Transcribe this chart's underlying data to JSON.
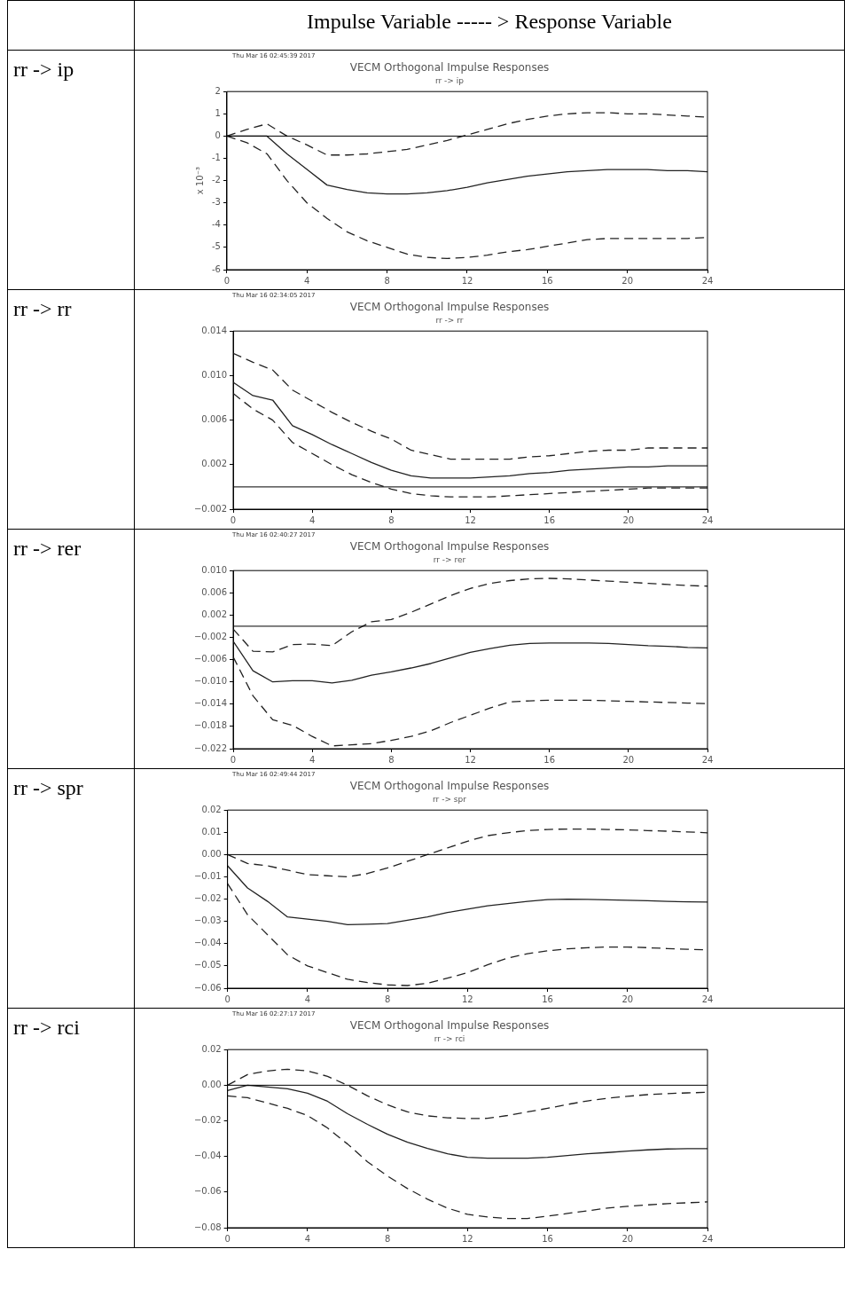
{
  "chart_data": [
    {
      "type": "line",
      "title": "VECM Orthogonal Impulse Responses",
      "subtitle": "rr -> ip",
      "ylabel": "x 10⁻³",
      "annotations": [
        "rr -> ip",
        "Thu Mar 16 02:45:39 2017",
        "Impulse Variable ----- > Response Variable"
      ],
      "x": [
        0,
        1,
        2,
        3,
        4,
        5,
        6,
        7,
        8,
        9,
        10,
        11,
        12,
        13,
        14,
        15,
        16,
        17,
        18,
        19,
        20,
        21,
        22,
        23,
        24
      ],
      "xlim": [
        0,
        24
      ],
      "xticks": [
        0,
        4,
        8,
        12,
        16,
        20,
        24
      ],
      "ylim": [
        -6,
        2
      ],
      "yticks": [
        -6,
        -5,
        -4,
        -3,
        -2,
        -1,
        0,
        1,
        2
      ],
      "grid": false,
      "legend": false,
      "marker": "none",
      "ref_lines": [
        {
          "axis": "y",
          "value": 0,
          "color": "#000000",
          "line_style": "solid"
        }
      ],
      "series": [
        {
          "color": "#222222",
          "line_style": "solid",
          "values": [
            0,
            0,
            0,
            -0.8,
            -1.5,
            -2.2,
            -2.4,
            -2.55,
            -2.6,
            -2.6,
            -2.55,
            -2.45,
            -2.3,
            -2.1,
            -1.95,
            -1.8,
            -1.7,
            -1.6,
            -1.55,
            -1.5,
            -1.5,
            -1.5,
            -1.55,
            -1.55,
            -1.6
          ]
        },
        {
          "color": "#222222",
          "line_style": "dashed",
          "values": [
            0,
            0.3,
            0.55,
            0,
            -0.4,
            -0.85,
            -0.85,
            -0.8,
            -0.7,
            -0.6,
            -0.4,
            -0.2,
            0.05,
            0.3,
            0.55,
            0.75,
            0.9,
            1.0,
            1.05,
            1.05,
            1.0,
            1.0,
            0.95,
            0.9,
            0.85
          ]
        },
        {
          "color": "#222222",
          "line_style": "dashed",
          "values": [
            0,
            -0.3,
            -0.8,
            -2.0,
            -3.0,
            -3.7,
            -4.3,
            -4.7,
            -5.0,
            -5.3,
            -5.45,
            -5.5,
            -5.45,
            -5.35,
            -5.2,
            -5.1,
            -4.95,
            -4.8,
            -4.65,
            -4.6,
            -4.6,
            -4.6,
            -4.6,
            -4.6,
            -4.55
          ]
        }
      ]
    },
    {
      "type": "line",
      "title": "VECM Orthogonal Impulse Responses",
      "subtitle": "rr -> rr",
      "annotations": [
        "rr -> rr",
        "Thu Mar 16 02:34:05 2017"
      ],
      "x": [
        0,
        1,
        2,
        3,
        4,
        5,
        6,
        7,
        8,
        9,
        10,
        11,
        12,
        13,
        14,
        15,
        16,
        17,
        18,
        19,
        20,
        21,
        22,
        23,
        24
      ],
      "xlim": [
        0,
        24
      ],
      "xticks": [
        0,
        4,
        8,
        12,
        16,
        20,
        24
      ],
      "ylim": [
        -0.002,
        0.014
      ],
      "yticks": [
        {
          "value": -0.002,
          "label": "−0.002"
        },
        {
          "value": 0.002,
          "label": "0.002"
        },
        {
          "value": 0.006,
          "label": "0.006"
        },
        {
          "value": 0.01,
          "label": "0.010"
        },
        {
          "value": 0.014,
          "label": "0.014"
        }
      ],
      "grid": false,
      "legend": false,
      "marker": "none",
      "ref_lines": [
        {
          "axis": "y",
          "value": 0,
          "color": "#000000",
          "line_style": "solid"
        }
      ],
      "series": [
        {
          "color": "#222222",
          "line_style": "solid",
          "values": [
            0.0094,
            0.0082,
            0.0078,
            0.0055,
            0.0047,
            0.0038,
            0.003,
            0.0022,
            0.0015,
            0.001,
            0.0008,
            0.0008,
            0.0008,
            0.0009,
            0.001,
            0.0012,
            0.0013,
            0.0015,
            0.0016,
            0.0017,
            0.0018,
            0.0018,
            0.0019,
            0.0019,
            0.0019
          ]
        },
        {
          "color": "#222222",
          "line_style": "dashed",
          "values": [
            0.012,
            0.0112,
            0.0105,
            0.0087,
            0.0077,
            0.0067,
            0.0058,
            0.005,
            0.0043,
            0.0033,
            0.0029,
            0.0025,
            0.0025,
            0.0025,
            0.0025,
            0.0027,
            0.0028,
            0.003,
            0.0032,
            0.0033,
            0.0033,
            0.0035,
            0.0035,
            0.0035,
            0.0035
          ]
        },
        {
          "color": "#222222",
          "line_style": "dashed",
          "values": [
            0.0084,
            0.007,
            0.006,
            0.004,
            0.003,
            0.002,
            0.0011,
            0.0004,
            -0.0002,
            -0.0006,
            -0.0008,
            -0.0009,
            -0.0009,
            -0.0009,
            -0.0008,
            -0.0007,
            -0.0006,
            -0.0005,
            -0.0004,
            -0.0003,
            -0.0002,
            -0.0001,
            -0.0001,
            -0.0001,
            -0.0001
          ]
        }
      ]
    },
    {
      "type": "line",
      "title": "VECM Orthogonal Impulse Responses",
      "subtitle": "rr -> rer",
      "annotations": [
        "rr -> rer",
        "Thu Mar 16 02:40:27 2017"
      ],
      "x": [
        0,
        1,
        2,
        3,
        4,
        5,
        6,
        7,
        8,
        9,
        10,
        11,
        12,
        13,
        14,
        15,
        16,
        17,
        18,
        19,
        20,
        21,
        22,
        23,
        24
      ],
      "xlim": [
        0,
        24
      ],
      "xticks": [
        0,
        4,
        8,
        12,
        16,
        20,
        24
      ],
      "ylim": [
        -0.022,
        0.01
      ],
      "yticks": [
        {
          "value": -0.022,
          "label": "−0.022"
        },
        {
          "value": -0.018,
          "label": "−0.018"
        },
        {
          "value": -0.014,
          "label": "−0.014"
        },
        {
          "value": -0.01,
          "label": "−0.010"
        },
        {
          "value": -0.006,
          "label": "−0.006"
        },
        {
          "value": -0.002,
          "label": "−0.002"
        },
        {
          "value": 0.002,
          "label": "0.002"
        },
        {
          "value": 0.006,
          "label": "0.006"
        },
        {
          "value": 0.01,
          "label": "0.010"
        }
      ],
      "grid": false,
      "legend": false,
      "marker": "none",
      "ref_lines": [
        {
          "axis": "y",
          "value": 0,
          "color": "#000000",
          "line_style": "solid"
        }
      ],
      "series": [
        {
          "color": "#222222",
          "line_style": "solid",
          "values": [
            -0.0027,
            -0.008,
            -0.01,
            -0.0098,
            -0.0098,
            -0.0102,
            -0.0097,
            -0.0088,
            -0.0082,
            -0.0075,
            -0.0067,
            -0.0057,
            -0.0047,
            -0.004,
            -0.0034,
            -0.0031,
            -0.003,
            -0.003,
            -0.003,
            -0.0031,
            -0.0033,
            -0.0035,
            -0.0036,
            -0.0038,
            -0.0039
          ]
        },
        {
          "color": "#222222",
          "line_style": "dashed",
          "values": [
            -0.0005,
            -0.0045,
            -0.0046,
            -0.0033,
            -0.0032,
            -0.0035,
            -0.001,
            0.0008,
            0.0012,
            0.0025,
            0.004,
            0.0055,
            0.0068,
            0.0077,
            0.0082,
            0.0085,
            0.0086,
            0.0085,
            0.0083,
            0.0081,
            0.0079,
            0.0077,
            0.0075,
            0.0073,
            0.0072
          ]
        },
        {
          "color": "#222222",
          "line_style": "dashed",
          "values": [
            -0.0055,
            -0.0125,
            -0.0168,
            -0.0178,
            -0.0198,
            -0.0215,
            -0.0213,
            -0.0211,
            -0.0205,
            -0.0198,
            -0.0188,
            -0.0173,
            -0.016,
            -0.0147,
            -0.0136,
            -0.0134,
            -0.0133,
            -0.0133,
            -0.0133,
            -0.0134,
            -0.0135,
            -0.0136,
            -0.0137,
            -0.0138,
            -0.0139
          ]
        }
      ]
    },
    {
      "type": "line",
      "title": "VECM Orthogonal Impulse Responses",
      "subtitle": "rr -> spr",
      "annotations": [
        "rr -> spr",
        "Thu Mar 16 02:49:44 2017"
      ],
      "x": [
        0,
        1,
        2,
        3,
        4,
        5,
        6,
        7,
        8,
        9,
        10,
        11,
        12,
        13,
        14,
        15,
        16,
        17,
        18,
        19,
        20,
        21,
        22,
        23,
        24
      ],
      "xlim": [
        0,
        24
      ],
      "xticks": [
        0,
        4,
        8,
        12,
        16,
        20,
        24
      ],
      "ylim": [
        -0.06,
        0.02
      ],
      "yticks": [
        {
          "value": -0.06,
          "label": "−0.06"
        },
        {
          "value": -0.05,
          "label": "−0.05"
        },
        {
          "value": -0.04,
          "label": "−0.04"
        },
        {
          "value": -0.03,
          "label": "−0.03"
        },
        {
          "value": -0.02,
          "label": "−0.02"
        },
        {
          "value": -0.01,
          "label": "−0.01"
        },
        {
          "value": 0,
          "label": "0.00"
        },
        {
          "value": 0.01,
          "label": "0.01"
        },
        {
          "value": 0.02,
          "label": "0.02"
        }
      ],
      "grid": false,
      "legend": false,
      "marker": "none",
      "ref_lines": [
        {
          "axis": "y",
          "value": 0,
          "color": "#000000",
          "line_style": "solid"
        }
      ],
      "series": [
        {
          "color": "#222222",
          "line_style": "solid",
          "values": [
            -0.005,
            -0.015,
            -0.021,
            -0.028,
            -0.029,
            -0.03,
            -0.0315,
            -0.0313,
            -0.031,
            -0.0295,
            -0.028,
            -0.026,
            -0.0245,
            -0.023,
            -0.022,
            -0.021,
            -0.0202,
            -0.02,
            -0.0201,
            -0.0203,
            -0.0205,
            -0.0207,
            -0.021,
            -0.0212,
            -0.0213
          ]
        },
        {
          "color": "#222222",
          "line_style": "dashed",
          "values": [
            0,
            -0.004,
            -0.005,
            -0.007,
            -0.009,
            -0.0095,
            -0.01,
            -0.0085,
            -0.006,
            -0.003,
            0,
            0.003,
            0.006,
            0.0085,
            0.0098,
            0.0108,
            0.0113,
            0.0115,
            0.0115,
            0.0113,
            0.0111,
            0.0108,
            0.0105,
            0.0102,
            0.0098
          ]
        },
        {
          "color": "#222222",
          "line_style": "dashed",
          "values": [
            -0.013,
            -0.027,
            -0.036,
            -0.045,
            -0.05,
            -0.053,
            -0.056,
            -0.0575,
            -0.0585,
            -0.0588,
            -0.0578,
            -0.0555,
            -0.053,
            -0.0495,
            -0.0465,
            -0.0445,
            -0.0432,
            -0.0423,
            -0.0418,
            -0.0415,
            -0.0415,
            -0.0418,
            -0.0422,
            -0.0425,
            -0.0428
          ]
        }
      ]
    },
    {
      "type": "line",
      "title": "VECM Orthogonal Impulse Responses",
      "subtitle": "rr -> rci",
      "annotations": [
        "rr -> rci",
        "Thu Mar 16 02:27:17 2017"
      ],
      "x": [
        0,
        1,
        2,
        3,
        4,
        5,
        6,
        7,
        8,
        9,
        10,
        11,
        12,
        13,
        14,
        15,
        16,
        17,
        18,
        19,
        20,
        21,
        22,
        23,
        24
      ],
      "xlim": [
        0,
        24
      ],
      "xticks": [
        0,
        4,
        8,
        12,
        16,
        20,
        24
      ],
      "ylim": [
        -0.08,
        0.02
      ],
      "yticks": [
        {
          "value": -0.08,
          "label": "−0.08"
        },
        {
          "value": -0.06,
          "label": "−0.06"
        },
        {
          "value": -0.04,
          "label": "−0.04"
        },
        {
          "value": -0.02,
          "label": "−0.02"
        },
        {
          "value": 0,
          "label": "0.00"
        },
        {
          "value": 0.02,
          "label": "0.02"
        }
      ],
      "grid": false,
      "legend": false,
      "marker": "none",
      "ref_lines": [
        {
          "axis": "y",
          "value": 0,
          "color": "#000000",
          "line_style": "solid"
        }
      ],
      "series": [
        {
          "color": "#222222",
          "line_style": "solid",
          "values": [
            -0.003,
            0,
            -0.001,
            -0.002,
            -0.0045,
            -0.009,
            -0.016,
            -0.022,
            -0.0275,
            -0.032,
            -0.0355,
            -0.0385,
            -0.0405,
            -0.041,
            -0.041,
            -0.041,
            -0.0405,
            -0.0395,
            -0.0385,
            -0.0378,
            -0.037,
            -0.0363,
            -0.0358,
            -0.0356,
            -0.0356
          ]
        },
        {
          "color": "#222222",
          "line_style": "dashed",
          "values": [
            0,
            0.006,
            0.008,
            0.009,
            0.008,
            0.005,
            0,
            -0.006,
            -0.011,
            -0.015,
            -0.0172,
            -0.0183,
            -0.0187,
            -0.0186,
            -0.017,
            -0.015,
            -0.013,
            -0.0108,
            -0.0088,
            -0.0073,
            -0.0062,
            -0.0053,
            -0.0047,
            -0.0043,
            -0.004
          ]
        },
        {
          "color": "#222222",
          "line_style": "dashed",
          "values": [
            -0.006,
            -0.007,
            -0.01,
            -0.013,
            -0.017,
            -0.024,
            -0.033,
            -0.043,
            -0.051,
            -0.058,
            -0.064,
            -0.069,
            -0.0725,
            -0.074,
            -0.0748,
            -0.0748,
            -0.0735,
            -0.072,
            -0.0705,
            -0.069,
            -0.068,
            -0.0672,
            -0.0665,
            -0.066,
            -0.0655
          ]
        }
      ]
    }
  ]
}
